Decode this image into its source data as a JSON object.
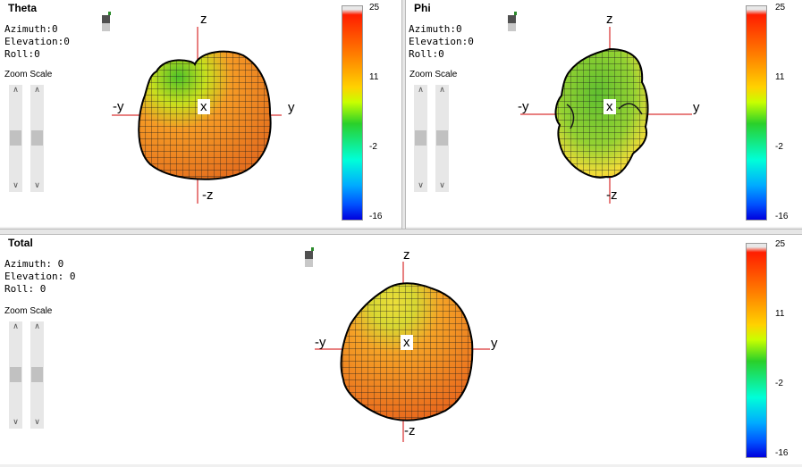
{
  "colors": {
    "axis": "#d00000",
    "grid": "#111111"
  },
  "panels": {
    "theta": {
      "title": "Theta",
      "azimuth": "Azimuth:0",
      "elevation": "Elevation:0",
      "roll": "Roll:0",
      "zoom_label": "Zoom Scale",
      "zoom_slider_level": 0.45,
      "scale_slider_level": 0.45,
      "axes": {
        "z": "z",
        "neg_z": "-z",
        "y": "y",
        "neg_y": "-y",
        "x": "x"
      },
      "colorbar": [
        "25",
        "11",
        "-2",
        "-16"
      ]
    },
    "phi": {
      "title": "Phi",
      "azimuth": "Azimuth:0",
      "elevation": "Elevation:0",
      "roll": "Roll:0",
      "zoom_label": "Zoom Scale",
      "zoom_slider_level": 0.45,
      "scale_slider_level": 0.45,
      "axes": {
        "z": "z",
        "neg_z": "-z",
        "y": "y",
        "neg_y": "-y",
        "x": "x"
      },
      "colorbar": [
        "25",
        "11",
        "-2",
        "-16"
      ]
    },
    "total": {
      "title": "Total",
      "azimuth": "Azimuth: 0",
      "elevation": "Elevation: 0",
      "roll": "Roll: 0",
      "zoom_label": "Zoom Scale",
      "zoom_slider_level": 0.45,
      "scale_slider_level": 0.45,
      "axes": {
        "z": "z",
        "neg_z": "-z",
        "y": "y",
        "neg_y": "-y",
        "x": "x"
      },
      "colorbar": [
        "25",
        "11",
        "-2",
        "-16"
      ]
    }
  },
  "icons": {
    "slider_up": "chevron-up-icon",
    "slider_down": "chevron-down-icon",
    "view_toggle": "view-toggle-icon"
  }
}
